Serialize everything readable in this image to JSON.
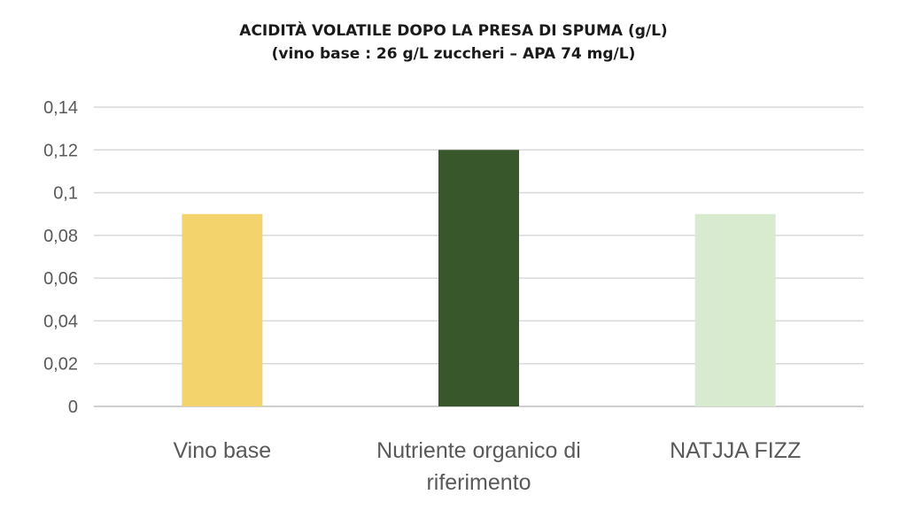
{
  "chart_data": {
    "type": "bar",
    "title": "ACIDITÀ VOLATILE DOPO LA PRESA DI SPUMA (g/L)",
    "subtitle": "(vino base : 26 g/L zuccheri – APA 74 mg/L)",
    "categories": [
      "Vino base",
      "Nutriente organico di riferimento",
      "NATJJA FIZZ"
    ],
    "category_lines": [
      [
        "Vino base"
      ],
      [
        "Nutriente organico di",
        "riferimento"
      ],
      [
        "NATJJA FIZZ"
      ]
    ],
    "values": [
      0.09,
      0.12,
      0.09
    ],
    "colors": [
      "#f3d46c",
      "#38582c",
      "#d8ebcf"
    ],
    "ylim": [
      0,
      0.14
    ],
    "yticks": [
      0,
      0.02,
      0.04,
      0.06,
      0.08,
      0.1,
      0.12,
      0.14
    ],
    "ytick_labels": [
      "0",
      "0,02",
      "0,04",
      "0,06",
      "0,08",
      "0,1",
      "0,12",
      "0,14"
    ],
    "xlabel": "",
    "ylabel": "",
    "grid": true,
    "legend": "none"
  }
}
